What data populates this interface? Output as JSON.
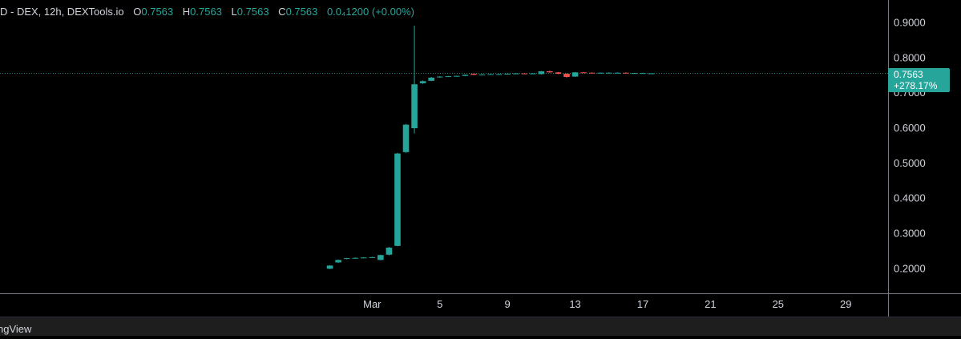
{
  "header": {
    "symbol_line": "D - DEX, 12h, DEXTools.io",
    "open_key": "O",
    "open": "0.7563",
    "high_key": "H",
    "high": "0.7563",
    "low_key": "L",
    "low": "0.7563",
    "close_key": "C",
    "close": "0.7563",
    "change": "0.0₄1200 (+0.00%)"
  },
  "price_tag": {
    "price": "0.7563",
    "change_pct": "+278.17%"
  },
  "footer": {
    "label": "ngView"
  },
  "colors": {
    "background": "#000000",
    "up": "#26a69a",
    "down": "#ef5350",
    "axis_text": "#d1d4dc",
    "axis_line": "#787b86",
    "last_price_line": "#26a69a"
  },
  "chart_data": {
    "type": "candlestick",
    "interval": "12h",
    "y_ticks": [
      "0.2000",
      "0.3000",
      "0.4000",
      "0.5000",
      "0.6000",
      "0.7000",
      "0.8000",
      "0.9000"
    ],
    "x_ticks": [
      {
        "day": 1,
        "label": "Mar"
      },
      {
        "day": 5,
        "label": "5"
      },
      {
        "day": 9,
        "label": "9"
      },
      {
        "day": 13,
        "label": "13"
      },
      {
        "day": 17,
        "label": "17"
      },
      {
        "day": 21,
        "label": "21"
      },
      {
        "day": 25,
        "label": "25"
      },
      {
        "day": 29,
        "label": "29"
      }
    ],
    "ylim": [
      0.13,
      0.965
    ],
    "xlim_days": [
      -21.0,
      31.5
    ],
    "last_price": 0.7563,
    "candles": [
      {
        "t": -1.5,
        "o": 0.2,
        "h": 0.21,
        "l": 0.199,
        "c": 0.209
      },
      {
        "t": -1.0,
        "o": 0.218,
        "h": 0.226,
        "l": 0.216,
        "c": 0.225
      },
      {
        "t": -0.5,
        "o": 0.228,
        "h": 0.231,
        "l": 0.227,
        "c": 0.23
      },
      {
        "t": 0.0,
        "o": 0.23,
        "h": 0.232,
        "l": 0.229,
        "c": 0.231
      },
      {
        "t": 0.5,
        "o": 0.231,
        "h": 0.233,
        "l": 0.23,
        "c": 0.232
      },
      {
        "t": 1.0,
        "o": 0.232,
        "h": 0.234,
        "l": 0.231,
        "c": 0.233
      },
      {
        "t": 1.5,
        "o": 0.225,
        "h": 0.24,
        "l": 0.224,
        "c": 0.239
      },
      {
        "t": 2.0,
        "o": 0.24,
        "h": 0.262,
        "l": 0.238,
        "c": 0.26
      },
      {
        "t": 2.5,
        "o": 0.265,
        "h": 0.53,
        "l": 0.264,
        "c": 0.528
      },
      {
        "t": 3.0,
        "o": 0.532,
        "h": 0.612,
        "l": 0.53,
        "c": 0.61
      },
      {
        "t": 3.5,
        "o": 0.6,
        "h": 0.892,
        "l": 0.585,
        "c": 0.725
      },
      {
        "t": 4.0,
        "o": 0.728,
        "h": 0.736,
        "l": 0.726,
        "c": 0.734
      },
      {
        "t": 4.5,
        "o": 0.735,
        "h": 0.746,
        "l": 0.734,
        "c": 0.744
      },
      {
        "t": 5.0,
        "o": 0.745,
        "h": 0.748,
        "l": 0.744,
        "c": 0.747
      },
      {
        "t": 5.5,
        "o": 0.747,
        "h": 0.749,
        "l": 0.746,
        "c": 0.748
      },
      {
        "t": 6.0,
        "o": 0.748,
        "h": 0.75,
        "l": 0.747,
        "c": 0.749
      },
      {
        "t": 6.5,
        "o": 0.749,
        "h": 0.753,
        "l": 0.748,
        "c": 0.752
      },
      {
        "t": 7.0,
        "o": 0.755,
        "h": 0.756,
        "l": 0.751,
        "c": 0.752
      },
      {
        "t": 7.5,
        "o": 0.752,
        "h": 0.754,
        "l": 0.751,
        "c": 0.753
      },
      {
        "t": 8.0,
        "o": 0.753,
        "h": 0.755,
        "l": 0.752,
        "c": 0.754
      },
      {
        "t": 8.5,
        "o": 0.754,
        "h": 0.755,
        "l": 0.753,
        "c": 0.754
      },
      {
        "t": 9.0,
        "o": 0.754,
        "h": 0.756,
        "l": 0.753,
        "c": 0.755
      },
      {
        "t": 9.5,
        "o": 0.755,
        "h": 0.757,
        "l": 0.754,
        "c": 0.756
      },
      {
        "t": 10.0,
        "o": 0.756,
        "h": 0.757,
        "l": 0.754,
        "c": 0.755
      },
      {
        "t": 10.5,
        "o": 0.755,
        "h": 0.757,
        "l": 0.754,
        "c": 0.756
      },
      {
        "t": 11.0,
        "o": 0.754,
        "h": 0.763,
        "l": 0.753,
        "c": 0.762
      },
      {
        "t": 11.5,
        "o": 0.762,
        "h": 0.764,
        "l": 0.758,
        "c": 0.759
      },
      {
        "t": 12.0,
        "o": 0.759,
        "h": 0.76,
        "l": 0.754,
        "c": 0.755
      },
      {
        "t": 12.5,
        "o": 0.755,
        "h": 0.756,
        "l": 0.744,
        "c": 0.746
      },
      {
        "t": 13.0,
        "o": 0.747,
        "h": 0.76,
        "l": 0.746,
        "c": 0.759
      },
      {
        "t": 13.5,
        "o": 0.759,
        "h": 0.76,
        "l": 0.757,
        "c": 0.758
      },
      {
        "t": 14.0,
        "o": 0.758,
        "h": 0.759,
        "l": 0.756,
        "c": 0.757
      },
      {
        "t": 14.5,
        "o": 0.757,
        "h": 0.759,
        "l": 0.756,
        "c": 0.758
      },
      {
        "t": 15.0,
        "o": 0.758,
        "h": 0.759,
        "l": 0.757,
        "c": 0.758
      },
      {
        "t": 15.5,
        "o": 0.757,
        "h": 0.759,
        "l": 0.756,
        "c": 0.758
      },
      {
        "t": 16.0,
        "o": 0.758,
        "h": 0.759,
        "l": 0.756,
        "c": 0.757
      },
      {
        "t": 16.5,
        "o": 0.757,
        "h": 0.758,
        "l": 0.756,
        "c": 0.757
      },
      {
        "t": 17.0,
        "o": 0.756,
        "h": 0.758,
        "l": 0.755,
        "c": 0.757
      },
      {
        "t": 17.5,
        "o": 0.7563,
        "h": 0.7563,
        "l": 0.7563,
        "c": 0.7563
      }
    ]
  }
}
